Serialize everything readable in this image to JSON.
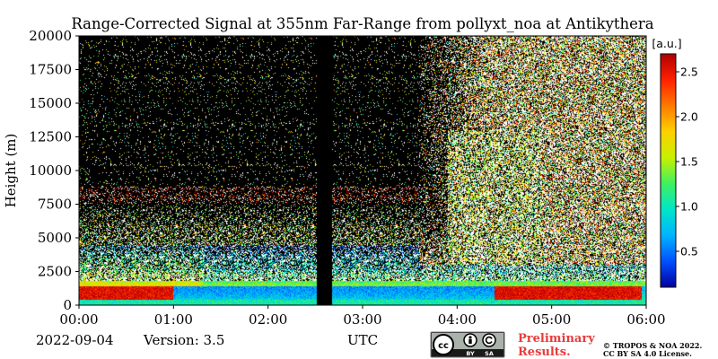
{
  "chart_data": {
    "type": "heatmap",
    "title": "Range-Corrected Signal at 355nm Far-Range from pollyxt_noa at Antikythera",
    "xlabel": "UTC",
    "ylabel": "Height (m)",
    "x_ticks": [
      "00:00",
      "01:00",
      "02:00",
      "03:00",
      "04:00",
      "05:00",
      "06:00"
    ],
    "x_range_hours": [
      0,
      6
    ],
    "y_ticks": [
      0,
      2500,
      5000,
      7500,
      10000,
      12500,
      15000,
      17500,
      20000
    ],
    "y_range": [
      0,
      20000
    ],
    "colorbar": {
      "label": "[a.u.]",
      "range": [
        0.1,
        2.7
      ],
      "ticks": [
        0.5,
        1.0,
        1.5,
        2.0,
        2.5
      ],
      "tick_labels": [
        "0.5",
        "1.0",
        "1.5",
        "2.0",
        "2.5"
      ],
      "colormap": "jet",
      "stops": [
        "#0000a0",
        "#0050ff",
        "#00b4ff",
        "#00e6c8",
        "#40f060",
        "#c8f000",
        "#ffd000",
        "#ff7a00",
        "#ff2000",
        "#b00000"
      ]
    },
    "data_gap_hours": [
      2.52,
      2.68
    ],
    "background_color": "#000000"
  },
  "footer": {
    "date": "2022-09-04",
    "version": "Version: 3.5",
    "preliminary_line1": "Preliminary",
    "preliminary_line2": "Results.",
    "copyright_line1": "© TROPOS & NOA 2022.",
    "copyright_line2": "CC BY SA 4.0 License."
  },
  "license_badge": {
    "cc": "cc",
    "by": "BY",
    "sa": "SA"
  }
}
